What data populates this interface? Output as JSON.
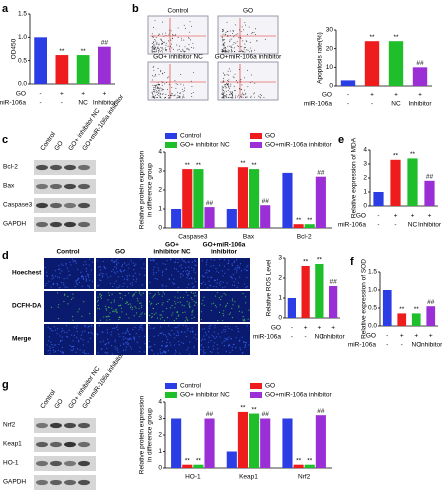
{
  "panel_labels": [
    "a",
    "b",
    "c",
    "e",
    "d",
    "f",
    "g"
  ],
  "chart_data": [
    {
      "type": "bar",
      "y_label": [
        "OD450"
      ],
      "yticks": [
        {
          "value": 0,
          "label": "0.0"
        },
        0.5,
        {
          "value": 1,
          "label": "1.0"
        },
        1.5
      ],
      "ylim": [
        0,
        1.5
      ],
      "values": [
        1.0,
        0.62,
        0.62,
        0.8
      ],
      "colors": [
        "#2b3ee6",
        "#ee1c1c",
        "#1fbf2b",
        "#9b2fd6"
      ],
      "significance": [
        null,
        "**",
        "**",
        "##"
      ],
      "conditions": [
        {
          "name": "GO",
          "values": [
            "-",
            "+",
            "+",
            "+"
          ]
        },
        {
          "name": "miR-106a",
          "values": [
            "-",
            "-",
            "NC",
            "Inhibitor"
          ]
        }
      ]
    },
    {
      "type": "bar",
      "y_label": [
        "Apoptosis rate(%)"
      ],
      "yticks": [
        0,
        10,
        20,
        30
      ],
      "ylim": [
        0,
        30
      ],
      "values": [
        3,
        24,
        24,
        10
      ],
      "colors": [
        "#2b3ee6",
        "#ee1c1c",
        "#1fbf2b",
        "#9b2fd6"
      ],
      "significance": [
        null,
        "**",
        "**",
        "##"
      ],
      "conditions": [
        {
          "name": "GO",
          "values": [
            "-",
            "+",
            "+",
            "+"
          ]
        },
        {
          "name": "miR-106a",
          "values": [
            "-",
            "-",
            "NC",
            "Inhibitor"
          ]
        }
      ]
    },
    {
      "type": "grouped-bar",
      "y_label": [
        "Relative protein expression",
        "in difference group"
      ],
      "yticks": [
        0,
        1,
        2,
        3,
        4
      ],
      "ylim": [
        0,
        4
      ],
      "categories": [
        "Caspase3",
        "Bax",
        "Bcl-2"
      ],
      "series": [
        {
          "name": "Control",
          "color": "#2b3ee6",
          "values": [
            1.0,
            1.0,
            2.9
          ],
          "significance": [
            null,
            null,
            null
          ]
        },
        {
          "name": "GO",
          "color": "#ee1c1c",
          "values": [
            3.1,
            3.2,
            0.2
          ],
          "significance": [
            "**",
            "**",
            "**"
          ]
        },
        {
          "name": "GO+ inhibitor NC",
          "color": "#1fbf2b",
          "values": [
            3.1,
            3.1,
            0.2
          ],
          "significance": [
            "**",
            "**",
            "**"
          ]
        },
        {
          "name": "GO+miR-106a inhibitor",
          "color": "#9b2fd6",
          "values": [
            1.1,
            1.2,
            2.7
          ],
          "significance": [
            "##",
            "##",
            "##"
          ]
        }
      ]
    },
    {
      "type": "bar",
      "y_label": [
        "Relative expression of MDA"
      ],
      "yticks": [
        0,
        1,
        2,
        3,
        4
      ],
      "ylim": [
        0,
        4
      ],
      "values": [
        1.0,
        3.3,
        3.4,
        1.8
      ],
      "colors": [
        "#2b3ee6",
        "#ee1c1c",
        "#1fbf2b",
        "#9b2fd6"
      ],
      "significance": [
        null,
        "**",
        "**",
        "##"
      ],
      "conditions": [
        {
          "name": "GO",
          "values": [
            "-",
            "+",
            "+",
            "+"
          ]
        },
        {
          "name": "miR-106a",
          "values": [
            "-",
            "-",
            "NC",
            "Inhibitor"
          ]
        }
      ]
    },
    {
      "type": "bar",
      "y_label": [
        "Relative ROS Level"
      ],
      "yticks": [
        0,
        1,
        2,
        3
      ],
      "ylim": [
        0,
        3
      ],
      "values": [
        1.0,
        2.6,
        2.7,
        1.6
      ],
      "colors": [
        "#2b3ee6",
        "#ee1c1c",
        "#1fbf2b",
        "#9b2fd6"
      ],
      "significance": [
        null,
        "**",
        "**",
        "##"
      ],
      "conditions": [
        {
          "name": "GO",
          "values": [
            "-",
            "+",
            "+",
            "+"
          ]
        },
        {
          "name": "miR-106a",
          "values": [
            "-",
            "-",
            "NC",
            "Inhibitor"
          ]
        }
      ]
    },
    {
      "type": "bar",
      "y_label": [
        "Relative expression of SOD"
      ],
      "yticks": [
        {
          "value": 0,
          "label": "0.0"
        },
        0.5,
        {
          "value": 1,
          "label": "1.0"
        },
        1.5
      ],
      "ylim": [
        0,
        1.5
      ],
      "values": [
        1.0,
        0.35,
        0.35,
        0.55
      ],
      "colors": [
        "#2b3ee6",
        "#ee1c1c",
        "#1fbf2b",
        "#9b2fd6"
      ],
      "significance": [
        null,
        "**",
        "**",
        "##"
      ],
      "conditions": [
        {
          "name": "GO",
          "values": [
            "-",
            "+",
            "+",
            "+"
          ]
        },
        {
          "name": "miR-106a",
          "values": [
            "-",
            "-",
            "NC",
            "Inhibitor"
          ]
        }
      ]
    },
    {
      "type": "grouped-bar",
      "y_label": [
        "Relative protein expression",
        "in difference group"
      ],
      "yticks": [
        0,
        1,
        2,
        3,
        4
      ],
      "ylim": [
        0,
        4
      ],
      "categories": [
        "HO-1",
        "Keap1",
        "Nrf2"
      ],
      "series": [
        {
          "name": "Control",
          "color": "#2b3ee6",
          "values": [
            3.0,
            1.0,
            3.0
          ],
          "significance": [
            null,
            null,
            null
          ]
        },
        {
          "name": "GO",
          "color": "#ee1c1c",
          "values": [
            0.2,
            3.4,
            0.2
          ],
          "significance": [
            "**",
            "**",
            "**"
          ]
        },
        {
          "name": "GO+ inhibitor NC",
          "color": "#1fbf2b",
          "values": [
            0.2,
            3.3,
            0.2
          ],
          "significance": [
            "**",
            "**",
            "**"
          ]
        },
        {
          "name": "GO+miR-106a inhibitor",
          "color": "#9b2fd6",
          "values": [
            3.0,
            3.0,
            3.2
          ],
          "significance": [
            "##",
            "##",
            "##"
          ]
        }
      ]
    }
  ],
  "flow": {
    "titles": [
      "Control",
      "GO",
      "GO+ inhibitor NC",
      "GO+miR-106a inhibitor"
    ]
  },
  "blots_c": {
    "lanes": [
      "Control",
      "GO",
      "GO+ inhibitor NC",
      "GO+miR-106a inhibitor"
    ],
    "rows": [
      "Bcl-2",
      "Bax",
      "Caspase3",
      "GAPDH"
    ]
  },
  "micrographs": {
    "columns": [
      [
        "Control"
      ],
      [
        "GO"
      ],
      [
        "GO+",
        "inhibitor NC"
      ],
      [
        "GO+miR-106a",
        "inhibitor"
      ]
    ],
    "rows": [
      "Hoechest",
      "DCFH-DA",
      "Merge"
    ]
  },
  "blots_g": {
    "lanes": [
      "Control",
      "GO",
      "GO+ inhibitor NC",
      "GO+miR-106a inhibitor"
    ],
    "rows": [
      "Nrf2",
      "Keap1",
      "HO-1",
      "GAPDH"
    ]
  }
}
